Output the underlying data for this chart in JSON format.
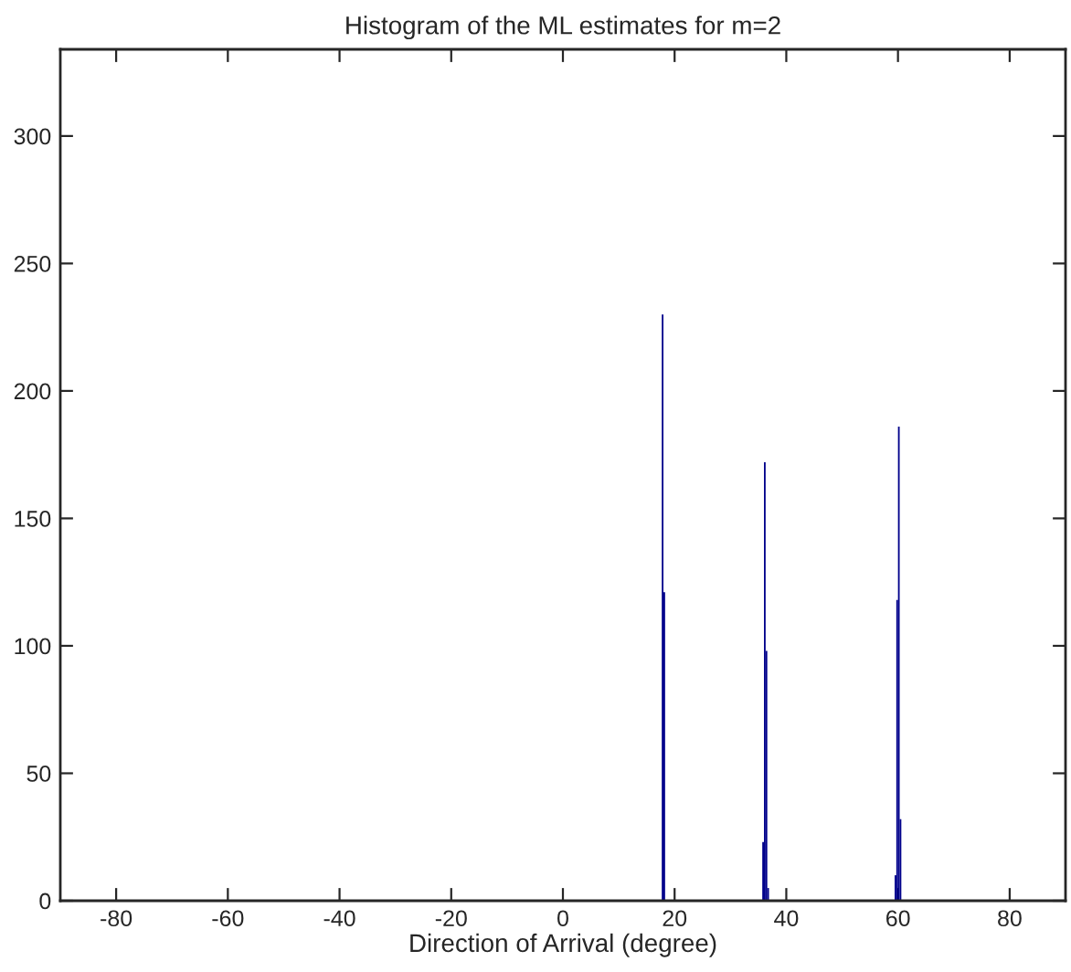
{
  "chart_data": {
    "type": "histogram",
    "title": "Histogram of the ML estimates for m=2",
    "xlabel": "Direction of Arrival (degree)",
    "bins": [
      17.7,
      18.0,
      18.3,
      35.7,
      36.0,
      36.3,
      36.6,
      36.9,
      59.4,
      59.7,
      60.0,
      60.3,
      60.6
    ],
    "values": [
      230,
      121,
      0,
      23,
      172,
      98,
      5,
      0,
      10,
      118,
      186,
      32
    ],
    "color": "#00008b",
    "xlim": [
      -90,
      90
    ],
    "xticks": [
      -80,
      -60,
      -40,
      -20,
      0,
      20,
      40,
      60,
      80
    ],
    "ylim": [
      0,
      334
    ],
    "yticks": [
      0,
      50,
      100,
      150,
      200,
      250,
      300
    ],
    "grid": false
  }
}
